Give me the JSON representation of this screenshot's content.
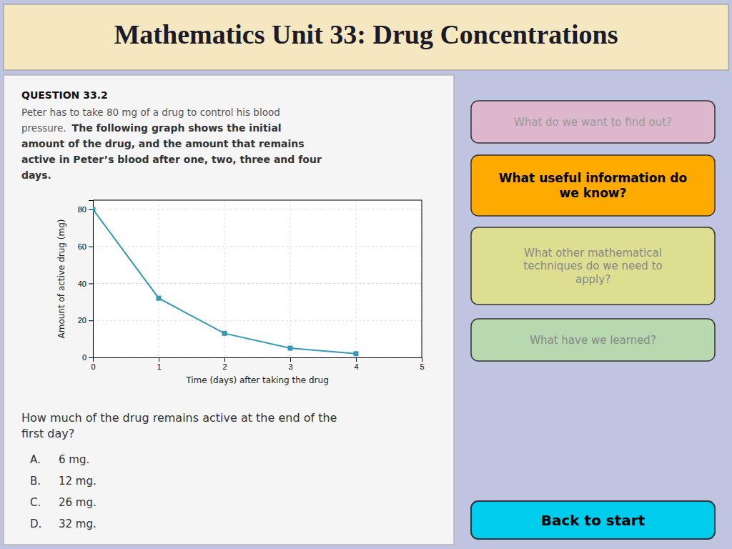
{
  "chart_data": {
    "type": "line",
    "title": "Mathematics Unit 33: Drug Concentrations",
    "xlabel": "Time (days) after taking the drug",
    "ylabel": "Amount of active drug (mg)",
    "x": [
      0,
      1,
      2,
      3,
      4
    ],
    "values": [
      80,
      32,
      13,
      5,
      2
    ],
    "color": "#3399bb",
    "marker": "square",
    "xlim": [
      0,
      5
    ],
    "ylim": [
      0,
      85
    ],
    "xticks": [
      0,
      1,
      2,
      3,
      4,
      5
    ],
    "yticks": [
      0,
      20,
      40,
      60,
      80
    ],
    "grid": true,
    "annotations": [
      "QUESTION 33.2",
      "Peter has to take 80 mg of a drug to control his blood",
      "pressure.",
      "The following graph shows the initial",
      "amount of the drug, and the amount that remains",
      "active in Peter’s blood after one, two, three and four",
      "days.",
      "How much of the drug remains active at the end of the",
      "first day?",
      "A.",
      "6 mg.",
      "B.",
      "12 mg.",
      "C.",
      "26 mg.",
      "D.",
      "32 mg.",
      "What do we want to find out?",
      "What useful information do\nwe know?",
      "What other mathematical\ntechniques do we need to\napply?",
      "What have we learned?",
      "Back to start"
    ]
  }
}
